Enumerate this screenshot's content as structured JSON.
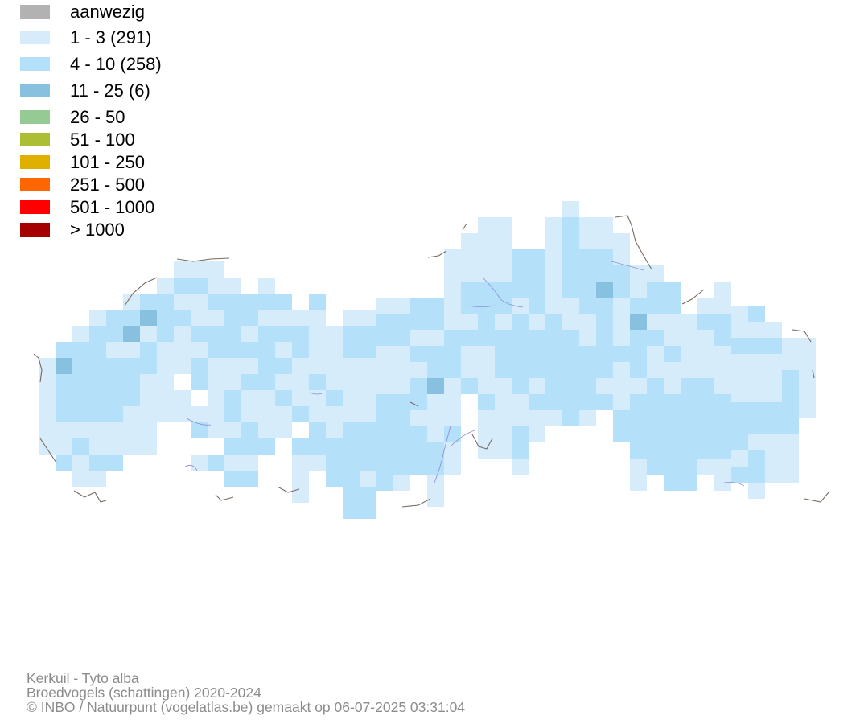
{
  "legend": {
    "items": [
      {
        "label": "aanwezig",
        "color": "#b2b2b2"
      },
      {
        "label": "1 - 3 (291)",
        "color": "#d6ecfa"
      },
      {
        "label": "4 - 10 (258)",
        "color": "#b4e0fa"
      },
      {
        "label": "11 - 25 (6)",
        "color": "#88c1e0"
      },
      {
        "label": "26 - 50",
        "color": "#96ca94"
      },
      {
        "label": "51 - 100",
        "color": "#acbf34"
      },
      {
        "label": "101 - 250",
        "color": "#e0b000"
      },
      {
        "label": "251 - 500",
        "color": "#ff6600"
      },
      {
        "label": "501 - 1000",
        "color": "#ff0000"
      },
      {
        "label": "> 1000",
        "color": "#a50000"
      }
    ]
  },
  "credits": {
    "species": "Kerkuil - Tyto alba",
    "dataset": "Broedvogels (schattingen) 2020-2024",
    "copyright": "© INBO / Natuurpunt (vogelatlas.be) gemaakt op 06-07-2025 03:31:04"
  },
  "colors": {
    "light": "#d6ecfa",
    "medium": "#b4e0fa",
    "dark": "#88c1e0",
    "border": "#7a6a60",
    "river": "#8a8ad8"
  }
}
